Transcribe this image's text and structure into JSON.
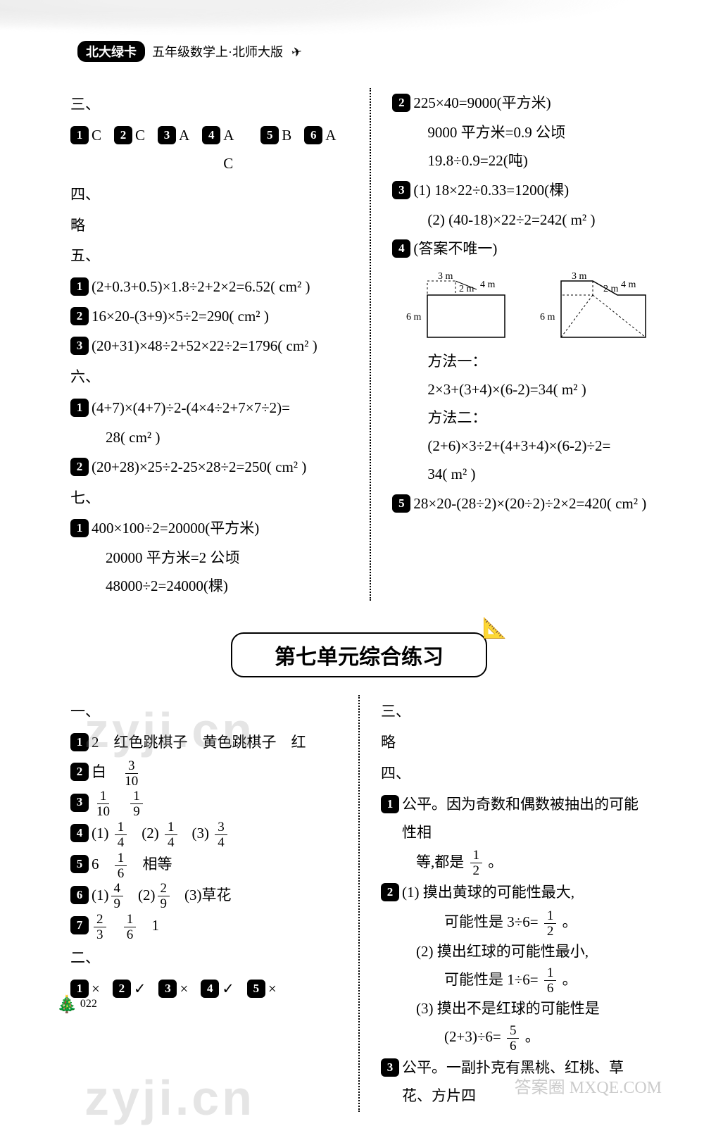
{
  "header": {
    "badge": "北大绿卡",
    "subtitle": "五年级数学上·北师大版"
  },
  "top_section": {
    "left": {
      "h3": "三、",
      "row3": [
        {
          "n": "1",
          "t": "C"
        },
        {
          "n": "2",
          "t": "C"
        },
        {
          "n": "3",
          "t": "A"
        },
        {
          "n": "4",
          "t": "A　C"
        },
        {
          "n": "5",
          "t": "B"
        },
        {
          "n": "6",
          "t": "A"
        }
      ],
      "h4": "四、",
      "lue4": "略",
      "h5": "五、",
      "l5": [
        {
          "n": "1",
          "t": "(2+0.3+0.5)×1.8÷2+2×2=6.52( cm² )"
        },
        {
          "n": "2",
          "t": "16×20-(3+9)×5÷2=290( cm² )"
        },
        {
          "n": "3",
          "t": "(20+31)×48÷2+52×22÷2=1796( cm² )"
        }
      ],
      "h6": "六、",
      "l6_1": {
        "n": "1",
        "t1": "(4+7)×(4+7)÷2-(4×4÷2+7×7÷2)=",
        "t2": "28( cm² )"
      },
      "l6_2": {
        "n": "2",
        "t": "(20+28)×25÷2-25×28÷2=250( cm² )"
      },
      "h7": "七、",
      "l7_1": {
        "n": "1",
        "t1": "400×100÷2=20000(平方米)",
        "t2": "20000 平方米=2 公顷",
        "t3": "48000÷2=24000(棵)"
      }
    },
    "right": {
      "l2": {
        "n": "2",
        "t1": "225×40=9000(平方米)",
        "t2": "9000 平方米=0.9 公顷",
        "t3": "19.8÷0.9=22(吨)"
      },
      "l3": {
        "n": "3",
        "t1": "(1) 18×22÷0.33=1200(棵)",
        "t2": "(2) (40-18)×22÷2=242( m² )"
      },
      "l4": {
        "n": "4",
        "t": "(答案不唯一)"
      },
      "diagram_labels": {
        "a": "3 m",
        "b": "2 m",
        "c": "4 m",
        "d": "6 m"
      },
      "method1_label": "方法一：",
      "method1": "2×3+(3+4)×(6-2)=34( m² )",
      "method2_label": "方法二：",
      "method2": "(2+6)×3÷2+(4+3+4)×(6-2)÷2=",
      "method2b": "34( m² )",
      "l5": {
        "n": "5",
        "t": "28×20-(28÷2)×(20÷2)÷2×2=420( cm² )"
      }
    }
  },
  "unit_title": "第七单元综合练习",
  "bottom_section": {
    "left": {
      "h1": "一、",
      "l1": {
        "n": "1",
        "t": "2　红色跳棋子　黄色跳棋子　红"
      },
      "l2": {
        "n": "2",
        "pre": "白",
        "frac": {
          "num": "3",
          "den": "10"
        }
      },
      "l3": {
        "n": "3",
        "f1": {
          "num": "1",
          "den": "10"
        },
        "f2": {
          "num": "1",
          "den": "9"
        }
      },
      "l4": {
        "n": "4",
        "parts": [
          {
            "label": "(1)",
            "f": {
              "num": "1",
              "den": "4"
            }
          },
          {
            "label": "(2)",
            "f": {
              "num": "1",
              "den": "4"
            }
          },
          {
            "label": "(3)",
            "f": {
              "num": "3",
              "den": "4"
            }
          }
        ]
      },
      "l5": {
        "n": "5",
        "t": "6",
        "f": {
          "num": "1",
          "den": "6"
        },
        "t2": "相等"
      },
      "l6": {
        "n": "6",
        "parts": [
          {
            "label": "(1)",
            "f": {
              "num": "4",
              "den": "9"
            }
          },
          {
            "label": "(2)",
            "f": {
              "num": "2",
              "den": "9"
            }
          },
          {
            "label": "(3)",
            "t": "草花"
          }
        ]
      },
      "l7": {
        "n": "7",
        "f1": {
          "num": "2",
          "den": "3"
        },
        "f2": {
          "num": "1",
          "den": "6"
        },
        "t": "1"
      },
      "h2": "二、",
      "row2": [
        {
          "n": "1",
          "t": "×"
        },
        {
          "n": "2",
          "t": "✓"
        },
        {
          "n": "3",
          "t": "×"
        },
        {
          "n": "4",
          "t": "✓"
        },
        {
          "n": "5",
          "t": "×"
        }
      ]
    },
    "right": {
      "h3": "三、",
      "lue3": "略",
      "h4": "四、",
      "l1": {
        "n": "1",
        "t1": "公平。因为奇数和偶数被抽出的可能性相",
        "t2": "等,都是",
        "f": {
          "num": "1",
          "den": "2"
        },
        "t3": "。"
      },
      "l2": {
        "n": "2",
        "p1": {
          "label": "(1) 摸出黄球的可能性最大,",
          "t": "可能性是 3÷6=",
          "f": {
            "num": "1",
            "den": "2"
          },
          "end": "。"
        },
        "p2": {
          "label": "(2) 摸出红球的可能性最小,",
          "t": "可能性是 1÷6=",
          "f": {
            "num": "1",
            "den": "6"
          },
          "end": "。"
        },
        "p3": {
          "label": "(3) 摸出不是红球的可能性是",
          "t": "(2+3)÷6=",
          "f": {
            "num": "5",
            "den": "6"
          },
          "end": "。"
        }
      },
      "l3": {
        "n": "3",
        "t": "公平。一副扑克有黑桃、红桃、草花、方片四"
      }
    }
  },
  "watermarks": {
    "w1": "zyji.cn",
    "w2": "zyji.cn",
    "logo": "答案圈\nMXQE.COM"
  },
  "footer": {
    "page": "022"
  }
}
